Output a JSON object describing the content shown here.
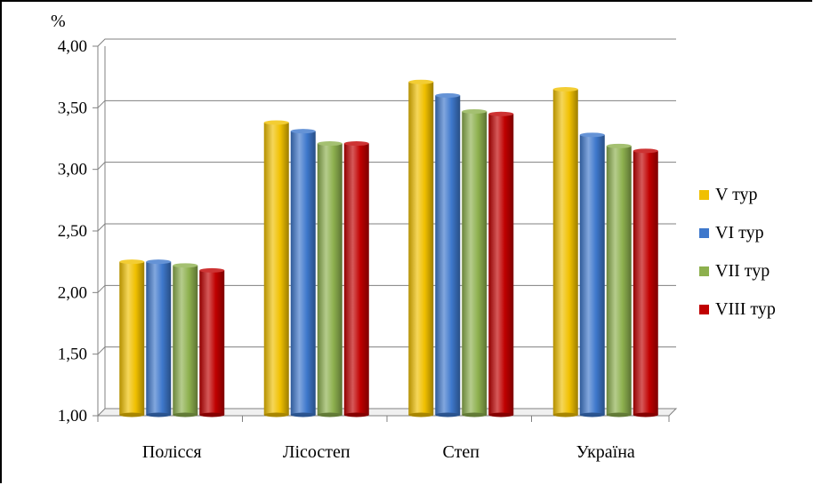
{
  "chart_data": {
    "type": "bar",
    "title": "",
    "ylabel": "%",
    "xlabel": "",
    "categories": [
      "Полісся",
      "Лісостеп",
      "Степ",
      "Україна"
    ],
    "ylim": [
      1.0,
      4.0
    ],
    "yticks": [
      "1,00",
      "1,50",
      "2,00",
      "2,50",
      "3,00",
      "3,50",
      "4,00"
    ],
    "grid": true,
    "legend_position": "right",
    "series": [
      {
        "name": "V тур",
        "color": "#F0C000",
        "values": [
          2.25,
          3.38,
          3.71,
          3.65
        ]
      },
      {
        "name": "VI тур",
        "color": "#3E78CC",
        "values": [
          2.25,
          3.31,
          3.6,
          3.28
        ]
      },
      {
        "name": "VII тур",
        "color": "#8DB04E",
        "values": [
          2.22,
          3.21,
          3.47,
          3.19
        ]
      },
      {
        "name": "VIII тур",
        "color": "#C00000",
        "values": [
          2.18,
          3.21,
          3.45,
          3.15
        ]
      }
    ]
  }
}
